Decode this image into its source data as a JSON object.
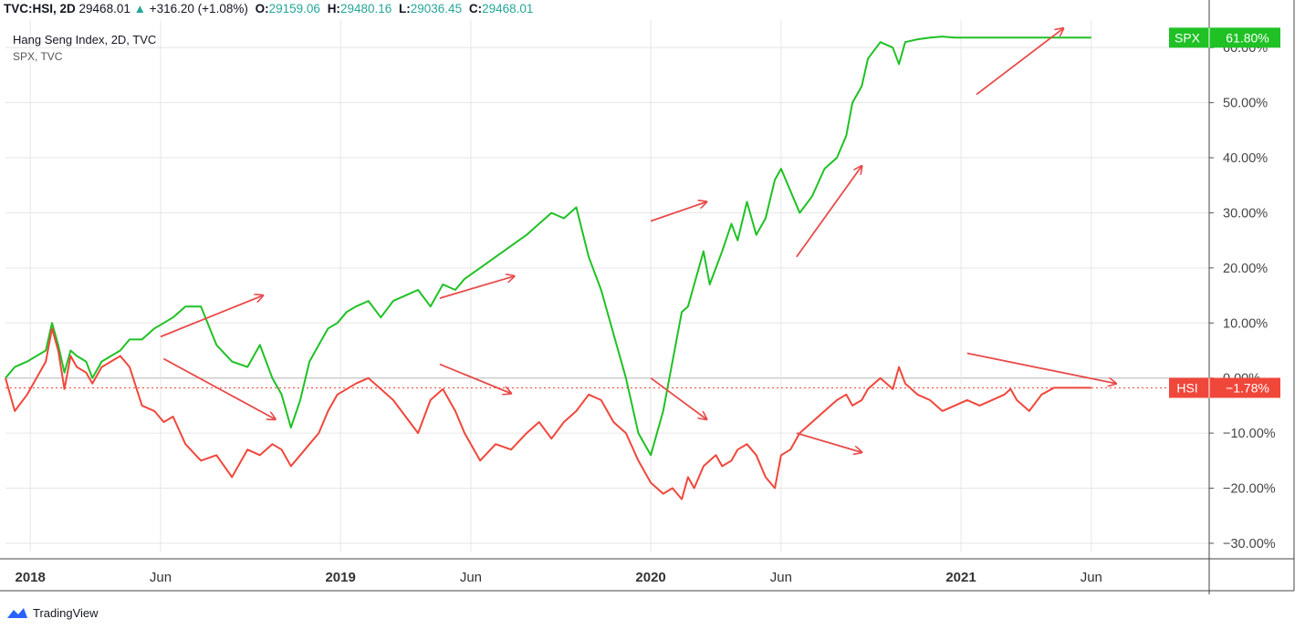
{
  "header": {
    "symbol": "TVC:HSI, 2D",
    "last": "29468.01",
    "arrow": "▲",
    "change": "+316.20 (+1.08%)",
    "o_label": "O:",
    "o_value": "29159.06",
    "h_label": "H:",
    "h_value": "29480.16",
    "l_label": "L:",
    "l_value": "29036.45",
    "c_label": "C:",
    "c_value": "29468.01"
  },
  "legend": {
    "main": "Hang Seng Index, 2D, TVC",
    "compare": "SPX, TVC"
  },
  "footer": {
    "brand": "TradingView",
    "icon": "tradingview-cloud-icon"
  },
  "colors": {
    "spx": "#1fc125",
    "hsi": "#f0473b",
    "arrow": "#e84a4a",
    "grid": "#e6e6e6",
    "zero": "#b5b5b5"
  },
  "chart_data": {
    "type": "line",
    "x_ticks": [
      {
        "t": 2018.0,
        "label": "2018",
        "bold": true
      },
      {
        "t": 2018.42,
        "label": "Jun",
        "bold": false
      },
      {
        "t": 2019.0,
        "label": "2019",
        "bold": true
      },
      {
        "t": 2019.42,
        "label": "Jun",
        "bold": false
      },
      {
        "t": 2020.0,
        "label": "2020",
        "bold": true
      },
      {
        "t": 2020.42,
        "label": "Jun",
        "bold": false
      },
      {
        "t": 2021.0,
        "label": "2021",
        "bold": true
      },
      {
        "t": 2021.42,
        "label": "Jun",
        "bold": false
      }
    ],
    "xlim": [
      2017.92,
      2021.8
    ],
    "y_ticks": [
      60,
      50,
      40,
      30,
      20,
      10,
      0,
      -10,
      -20,
      -30
    ],
    "y_tick_labels": [
      "60.00%",
      "50.00%",
      "40.00%",
      "30.00%",
      "20.00%",
      "10.00%",
      "0.00%",
      "−10.00%",
      "−20.00%",
      "−30.00%"
    ],
    "ylim": [
      -31.5,
      65
    ],
    "series": [
      {
        "name": "SPX",
        "badge": "SPX",
        "badge_value": "61.80%",
        "last": 61.8,
        "x": [
          2017.92,
          2017.95,
          2017.99,
          2018.02,
          2018.05,
          2018.07,
          2018.09,
          2018.11,
          2018.13,
          2018.15,
          2018.18,
          2018.2,
          2018.23,
          2018.26,
          2018.29,
          2018.32,
          2018.36,
          2018.4,
          2018.43,
          2018.46,
          2018.5,
          2018.55,
          2018.6,
          2018.65,
          2018.7,
          2018.74,
          2018.78,
          2018.81,
          2018.84,
          2018.87,
          2018.9,
          2018.93,
          2018.96,
          2018.99,
          2019.02,
          2019.05,
          2019.09,
          2019.13,
          2019.17,
          2019.21,
          2019.25,
          2019.29,
          2019.33,
          2019.37,
          2019.4,
          2019.45,
          2019.5,
          2019.55,
          2019.6,
          2019.64,
          2019.68,
          2019.72,
          2019.76,
          2019.8,
          2019.84,
          2019.88,
          2019.92,
          2019.96,
          2020.0,
          2020.04,
          2020.07,
          2020.1,
          2020.12,
          2020.14,
          2020.17,
          2020.19,
          2020.21,
          2020.23,
          2020.26,
          2020.28,
          2020.31,
          2020.34,
          2020.37,
          2020.4,
          2020.42,
          2020.45,
          2020.48,
          2020.52,
          2020.56,
          2020.6,
          2020.63,
          2020.65,
          2020.68,
          2020.7,
          2020.74,
          2020.78,
          2020.8,
          2020.82,
          2020.86,
          2020.9,
          2020.94,
          2020.98,
          2021.02,
          2021.06,
          2021.1,
          2021.14,
          2021.16,
          2021.18,
          2021.22,
          2021.26,
          2021.3,
          2021.33,
          2021.36,
          2021.38,
          2021.4,
          2021.42
        ],
        "y": [
          0,
          2,
          3,
          4,
          5,
          10,
          6,
          1,
          5,
          4,
          3,
          0,
          3,
          4,
          5,
          7,
          7,
          9,
          10,
          11,
          13,
          13,
          6,
          3,
          2,
          6,
          0,
          -3,
          -9,
          -4,
          3,
          6,
          9,
          10,
          12,
          13,
          14,
          11,
          14,
          15,
          16,
          13,
          17,
          16,
          18,
          20,
          22,
          24,
          26,
          28,
          30,
          29,
          31,
          22,
          16,
          8,
          0,
          -10,
          -14,
          -6,
          3,
          12,
          13,
          17,
          23,
          17,
          20,
          23,
          28,
          25,
          32,
          26,
          29,
          36,
          38,
          34,
          30,
          33,
          38,
          40,
          44,
          50,
          53,
          58,
          61,
          60,
          57,
          61,
          61.5,
          61.8,
          62,
          61.8,
          61.8,
          61.8,
          61.8,
          61.8,
          61.8,
          61.8,
          61.8,
          61.8,
          61.8,
          61.8,
          61.8,
          61.8,
          61.8,
          61.8
        ]
      },
      {
        "name": "HSI",
        "badge": "HSI",
        "badge_value": "−1.78%",
        "last": -1.78,
        "x": [
          2017.92,
          2017.95,
          2017.99,
          2018.02,
          2018.05,
          2018.07,
          2018.09,
          2018.11,
          2018.13,
          2018.15,
          2018.18,
          2018.2,
          2018.23,
          2018.26,
          2018.29,
          2018.32,
          2018.36,
          2018.4,
          2018.43,
          2018.46,
          2018.5,
          2018.55,
          2018.6,
          2018.65,
          2018.7,
          2018.74,
          2018.78,
          2018.81,
          2018.84,
          2018.87,
          2018.9,
          2018.93,
          2018.96,
          2018.99,
          2019.02,
          2019.05,
          2019.09,
          2019.13,
          2019.17,
          2019.21,
          2019.25,
          2019.29,
          2019.33,
          2019.37,
          2019.4,
          2019.45,
          2019.5,
          2019.55,
          2019.6,
          2019.64,
          2019.68,
          2019.72,
          2019.76,
          2019.8,
          2019.84,
          2019.88,
          2019.92,
          2019.96,
          2020.0,
          2020.04,
          2020.07,
          2020.1,
          2020.12,
          2020.14,
          2020.17,
          2020.19,
          2020.21,
          2020.23,
          2020.26,
          2020.28,
          2020.31,
          2020.34,
          2020.37,
          2020.4,
          2020.42,
          2020.45,
          2020.48,
          2020.52,
          2020.56,
          2020.6,
          2020.63,
          2020.65,
          2020.68,
          2020.7,
          2020.74,
          2020.78,
          2020.8,
          2020.82,
          2020.86,
          2020.9,
          2020.94,
          2020.98,
          2021.02,
          2021.06,
          2021.1,
          2021.14,
          2021.16,
          2021.18,
          2021.22,
          2021.26,
          2021.3,
          2021.33,
          2021.36,
          2021.38,
          2021.4,
          2021.42
        ],
        "y": [
          0,
          -6,
          -3,
          0,
          3,
          9,
          5,
          -2,
          4,
          2,
          1,
          -1,
          2,
          3,
          4,
          2,
          -5,
          -6,
          -8,
          -7,
          -12,
          -15,
          -14,
          -18,
          -13,
          -14,
          -12,
          -13,
          -16,
          -14,
          -12,
          -10,
          -6,
          -3,
          -2,
          -1,
          0,
          -2,
          -4,
          -7,
          -10,
          -4,
          -2,
          -6,
          -10,
          -15,
          -12,
          -13,
          -10,
          -8,
          -11,
          -8,
          -6,
          -3,
          -4,
          -8,
          -10,
          -15,
          -19,
          -21,
          -20,
          -22,
          -18,
          -20,
          -16,
          -15,
          -14,
          -16,
          -15,
          -13,
          -12,
          -14,
          -18,
          -20,
          -14,
          -13,
          -10,
          -8,
          -6,
          -4,
          -3,
          -5,
          -4,
          -2,
          0,
          -2,
          2,
          -1,
          -3,
          -4,
          -6,
          -5,
          -4,
          -5,
          -4,
          -3,
          -2,
          -4,
          -6,
          -3,
          -1.78,
          -1.78,
          -1.78,
          -1.78,
          -1.78,
          -1.78
        ]
      }
    ],
    "annotations": [
      {
        "x1": 2018.42,
        "y1": 7.5,
        "x2": 2018.75,
        "y2": 15
      },
      {
        "x1": 2018.43,
        "y1": 3.5,
        "x2": 2018.79,
        "y2": -7.5
      },
      {
        "x1": 2019.32,
        "y1": 14.5,
        "x2": 2019.56,
        "y2": 18.5
      },
      {
        "x1": 2019.32,
        "y1": 2.5,
        "x2": 2019.55,
        "y2": -2.8
      },
      {
        "x1": 2020.0,
        "y1": 28.5,
        "x2": 2020.18,
        "y2": 32
      },
      {
        "x1": 2020.0,
        "y1": 0,
        "x2": 2020.18,
        "y2": -7.5
      },
      {
        "x1": 2020.47,
        "y1": 22,
        "x2": 2020.68,
        "y2": 38.5
      },
      {
        "x1": 2020.47,
        "y1": -10,
        "x2": 2020.68,
        "y2": -13.5
      },
      {
        "x1": 2021.05,
        "y1": 51.5,
        "x2": 2021.33,
        "y2": 63.5
      },
      {
        "x1": 2021.02,
        "y1": 4.5,
        "x2": 2021.5,
        "y2": -1
      }
    ]
  }
}
